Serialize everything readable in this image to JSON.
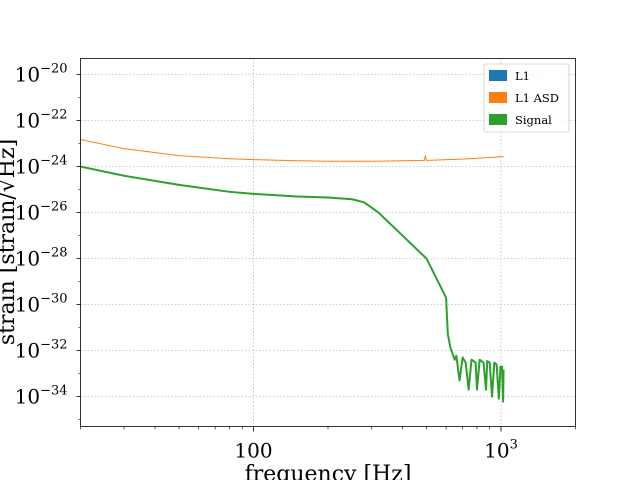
{
  "chart_data": {
    "type": "line",
    "xlabel": "frequency [Hz]",
    "ylabel": "strain [strain/√Hz]",
    "xscale": "log",
    "yscale": "log",
    "xlim": [
      20,
      2000
    ],
    "ylim": [
      5e-36,
      5e-20
    ],
    "x_ticks": [
      {
        "value": 100,
        "label": "100"
      },
      {
        "value": 1000,
        "base": "10",
        "exp": "3"
      }
    ],
    "y_ticks": [
      {
        "value": 1e-20,
        "base": "10",
        "exp": "−20"
      },
      {
        "value": 1e-22,
        "base": "10",
        "exp": "−22"
      },
      {
        "value": 1e-24,
        "base": "10",
        "exp": "−24"
      },
      {
        "value": 1e-26,
        "base": "10",
        "exp": "−26"
      },
      {
        "value": 1e-28,
        "base": "10",
        "exp": "−28"
      },
      {
        "value": 1e-30,
        "base": "10",
        "exp": "−30"
      },
      {
        "value": 1e-32,
        "base": "10",
        "exp": "−32"
      },
      {
        "value": 1e-34,
        "base": "10",
        "exp": "−34"
      }
    ],
    "grid": true,
    "legend_position": "top-right",
    "series": [
      {
        "name": "L1",
        "color": "#1f77b4",
        "points": []
      },
      {
        "name": "L1 ASD",
        "color": "#ff7f0e",
        "points": [
          [
            20,
            1.5e-23
          ],
          [
            30,
            6e-24
          ],
          [
            50,
            3e-24
          ],
          [
            80,
            2.2e-24
          ],
          [
            100,
            2e-24
          ],
          [
            150,
            1.8e-24
          ],
          [
            200,
            1.7e-24
          ],
          [
            300,
            1.7e-24
          ],
          [
            400,
            1.8e-24
          ],
          [
            490,
            1.85e-24
          ],
          [
            495,
            3e-24
          ],
          [
            500,
            1.85e-24
          ],
          [
            700,
            2.1e-24
          ],
          [
            1024,
            2.7e-24
          ]
        ]
      },
      {
        "name": "Signal",
        "color": "#2ca02c",
        "points": [
          [
            20,
            1e-24
          ],
          [
            30,
            4e-25
          ],
          [
            50,
            1.6e-25
          ],
          [
            80,
            8e-26
          ],
          [
            100,
            6.5e-26
          ],
          [
            150,
            5e-26
          ],
          [
            200,
            4.5e-26
          ],
          [
            250,
            3.8e-26
          ],
          [
            280,
            2.8e-26
          ],
          [
            320,
            1e-26
          ],
          [
            400,
            1e-27
          ],
          [
            500,
            1e-28
          ],
          [
            600,
            2e-30
          ],
          [
            605,
            3e-31
          ],
          [
            610,
            5e-32
          ],
          [
            625,
            1.3e-32
          ],
          [
            650,
            4e-33
          ],
          [
            660,
            6e-33
          ],
          [
            680,
            5e-34
          ],
          [
            700,
            5e-33
          ],
          [
            720,
            3e-33
          ],
          [
            740,
            2e-34
          ],
          [
            760,
            4e-33
          ],
          [
            790,
            3e-33
          ],
          [
            800,
            2e-34
          ],
          [
            820,
            4e-33
          ],
          [
            850,
            3e-33
          ],
          [
            870,
            2e-34
          ],
          [
            880,
            3.5e-33
          ],
          [
            900,
            3e-33
          ],
          [
            920,
            1e-34
          ],
          [
            940,
            3e-33
          ],
          [
            960,
            2.5e-33
          ],
          [
            980,
            8e-35
          ],
          [
            995,
            2e-33
          ],
          [
            1010,
            2e-33
          ],
          [
            1020,
            6e-35
          ],
          [
            1024,
            1.5e-33
          ]
        ]
      }
    ]
  }
}
